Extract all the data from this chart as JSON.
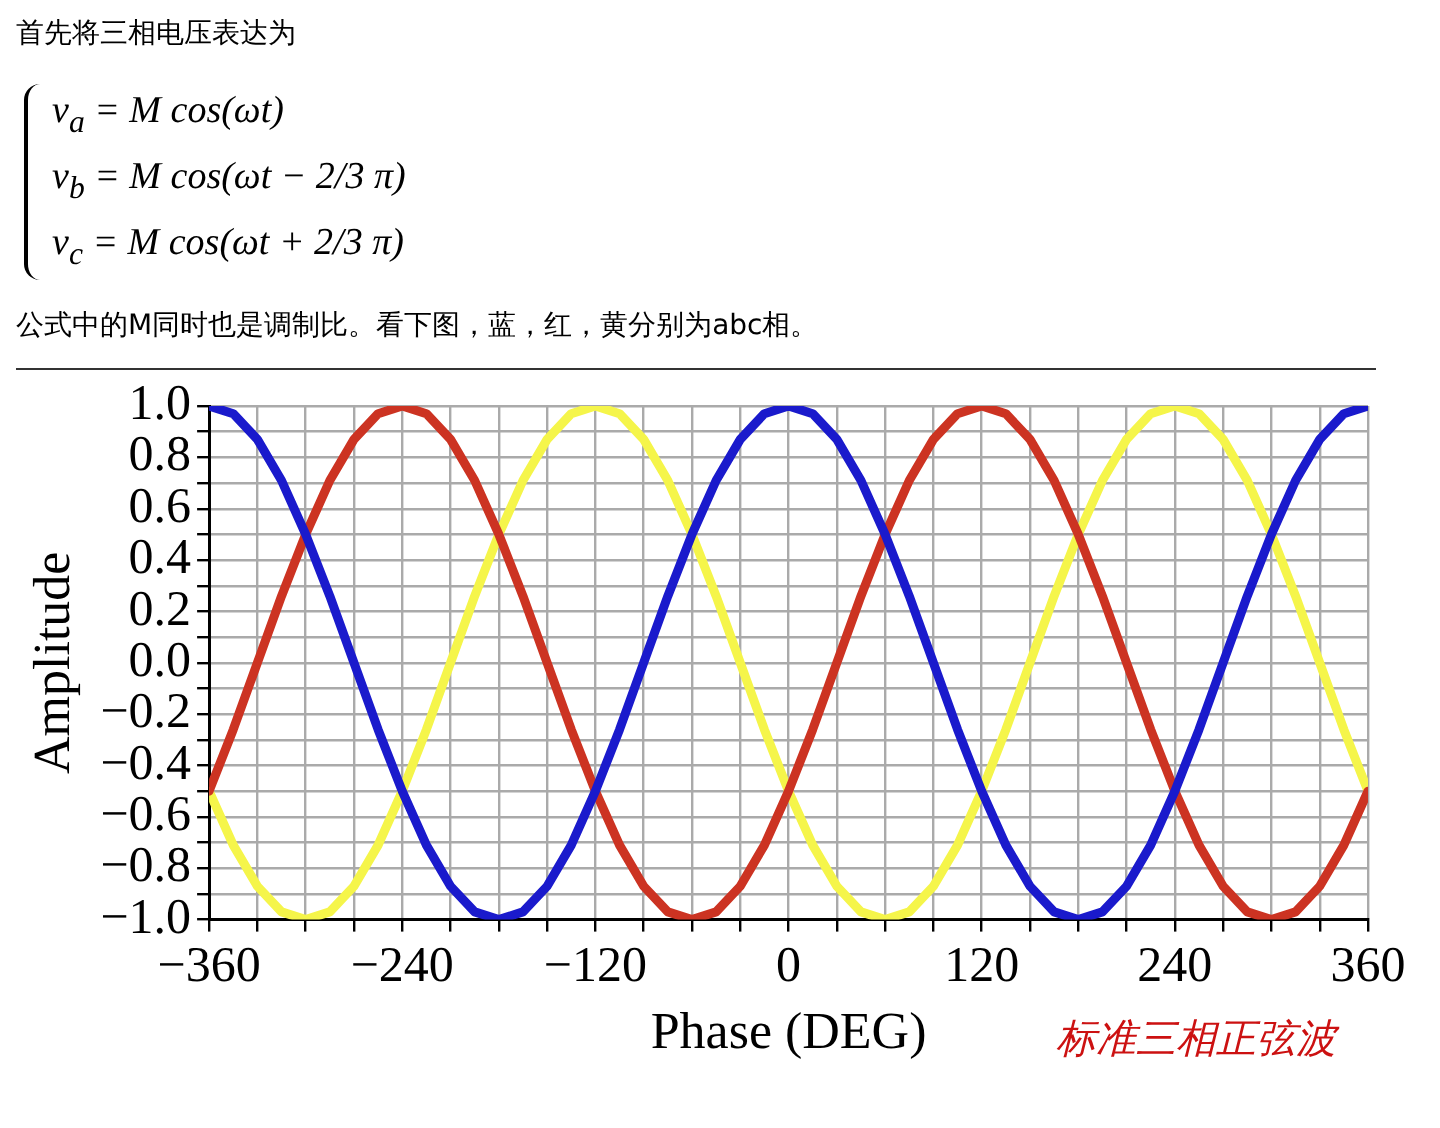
{
  "chart_data": {
    "type": "line",
    "title": "首先将三相电压表达为",
    "subtitle": "公式中的M同时也是调制比。看下图，蓝，红，黄分别为abc相。",
    "annotations": [
      "v$_{a}$ = M cos(ωt)",
      "v$_{b}$ = M cos(ωt − 2/3 π)",
      "v$_{c}$ = M cos(ωt + 2/3 π)",
      "标准三相正弦波"
    ],
    "xlabel": "Phase (DEG)",
    "ylabel": "Amplitude",
    "x": [
      -360,
      -345,
      -330,
      -315,
      -300,
      -285,
      -270,
      -255,
      -240,
      -225,
      -210,
      -195,
      -180,
      -165,
      -150,
      -135,
      -120,
      -105,
      -90,
      -75,
      -60,
      -45,
      -30,
      -15,
      0,
      15,
      30,
      45,
      60,
      75,
      90,
      105,
      120,
      135,
      150,
      165,
      180,
      195,
      210,
      225,
      240,
      255,
      270,
      285,
      300,
      315,
      330,
      345,
      360
    ],
    "series": [
      {
        "color": "#1a1acc",
        "values": [
          1,
          0.97,
          0.87,
          0.71,
          0.5,
          0.26,
          0,
          -0.26,
          -0.5,
          -0.71,
          -0.87,
          -0.97,
          -1,
          -0.97,
          -0.87,
          -0.71,
          -0.5,
          -0.26,
          0,
          0.26,
          0.5,
          0.71,
          0.87,
          0.97,
          1,
          0.97,
          0.87,
          0.71,
          0.5,
          0.26,
          0,
          -0.26,
          -0.5,
          -0.71,
          -0.87,
          -0.97,
          -1,
          -0.97,
          -0.87,
          -0.71,
          -0.5,
          -0.26,
          0,
          0.26,
          0.5,
          0.71,
          0.87,
          0.97,
          1
        ]
      },
      {
        "color": "#cc3322",
        "values": [
          -0.5,
          -0.26,
          0,
          0.26,
          0.5,
          0.71,
          0.87,
          0.97,
          1,
          0.97,
          0.87,
          0.71,
          0.5,
          0.26,
          0,
          -0.26,
          -0.5,
          -0.71,
          -0.87,
          -0.97,
          -1,
          -0.97,
          -0.87,
          -0.71,
          -0.5,
          -0.26,
          0,
          0.26,
          0.5,
          0.71,
          0.87,
          0.97,
          1,
          0.97,
          0.87,
          0.71,
          0.5,
          0.26,
          0,
          -0.26,
          -0.5,
          -0.71,
          -0.87,
          -0.97,
          -1,
          -0.97,
          -0.87,
          -0.71,
          -0.5
        ]
      },
      {
        "color": "#f5f54a",
        "values": [
          -0.5,
          -0.71,
          -0.87,
          -0.97,
          -1,
          -0.97,
          -0.87,
          -0.71,
          -0.5,
          -0.26,
          0,
          0.26,
          0.5,
          0.71,
          0.87,
          0.97,
          1,
          0.97,
          0.87,
          0.71,
          0.5,
          0.26,
          0,
          -0.26,
          -0.5,
          -0.71,
          -0.87,
          -0.97,
          -1,
          -0.97,
          -0.87,
          -0.71,
          -0.5,
          -0.26,
          0,
          0.26,
          0.5,
          0.71,
          0.87,
          0.97,
          1,
          0.97,
          0.87,
          0.71,
          0.5,
          0.26,
          0,
          -0.26,
          -0.5
        ]
      }
    ],
    "xlim": [
      -360,
      360
    ],
    "xticks": [
      {
        "value": -360,
        "label": "−360"
      },
      {
        "value": -330,
        "label": null
      },
      {
        "value": -300,
        "label": null
      },
      {
        "value": -270,
        "label": null
      },
      {
        "value": -240,
        "label": "−240"
      },
      {
        "value": -210,
        "label": null
      },
      {
        "value": -180,
        "label": null
      },
      {
        "value": -150,
        "label": null
      },
      {
        "value": -120,
        "label": "−120"
      },
      {
        "value": -90,
        "label": null
      },
      {
        "value": -60,
        "label": null
      },
      {
        "value": -30,
        "label": null
      },
      {
        "value": 0,
        "label": "0"
      },
      {
        "value": 30,
        "label": null
      },
      {
        "value": 60,
        "label": null
      },
      {
        "value": 90,
        "label": null
      },
      {
        "value": 120,
        "label": "120"
      },
      {
        "value": 150,
        "label": null
      },
      {
        "value": 180,
        "label": null
      },
      {
        "value": 210,
        "label": null
      },
      {
        "value": 240,
        "label": "240"
      },
      {
        "value": 270,
        "label": null
      },
      {
        "value": 300,
        "label": null
      },
      {
        "value": 330,
        "label": null
      },
      {
        "value": 360,
        "label": "360"
      }
    ],
    "ylim": [
      -1,
      1
    ],
    "yticks": [
      {
        "value": -1,
        "label": "−1.0"
      },
      {
        "value": -0.9,
        "label": null
      },
      {
        "value": -0.8,
        "label": "−0.8"
      },
      {
        "value": -0.7,
        "label": null
      },
      {
        "value": -0.6,
        "label": "−0.6"
      },
      {
        "value": -0.5,
        "label": null
      },
      {
        "value": -0.4,
        "label": "−0.4"
      },
      {
        "value": -0.3,
        "label": null
      },
      {
        "value": -0.2,
        "label": "−0.2"
      },
      {
        "value": -0.1,
        "label": null
      },
      {
        "value": 0,
        "label": "0.0"
      },
      {
        "value": 0.1,
        "label": null
      },
      {
        "value": 0.2,
        "label": "0.2"
      },
      {
        "value": 0.3,
        "label": null
      },
      {
        "value": 0.4,
        "label": "0.4"
      },
      {
        "value": 0.5,
        "label": null
      },
      {
        "value": 0.6,
        "label": "0.6"
      },
      {
        "value": 0.7,
        "label": null
      },
      {
        "value": 0.8,
        "label": "0.8"
      },
      {
        "value": 0.9,
        "label": null
      },
      {
        "value": 1,
        "label": "1.0"
      }
    ],
    "grid": true,
    "legend": false
  }
}
